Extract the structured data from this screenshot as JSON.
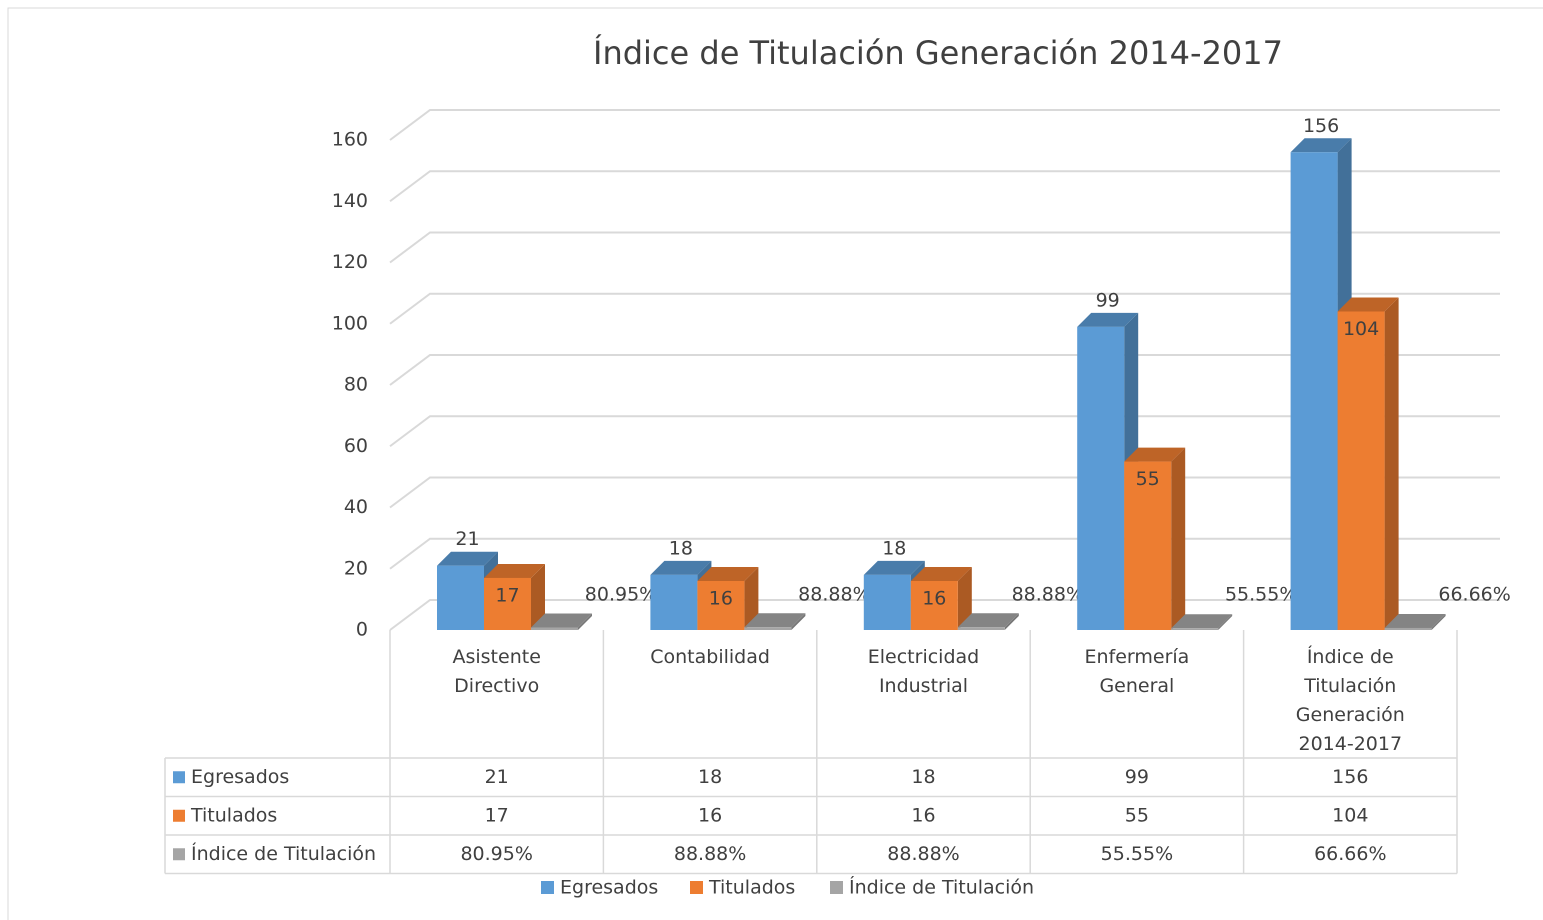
{
  "chart_data": {
    "type": "bar3d",
    "title": "Índice de Titulación Generación 2014-2017",
    "categories": [
      "Asistente Directivo",
      "Contabilidad",
      "Electricidad Industrial",
      "Enfermería General",
      "Índice de Titulación Generación 2014-2017"
    ],
    "series": [
      {
        "name": "Egresados",
        "color": "#5b9bd5",
        "values": [
          21,
          18,
          18,
          99,
          156
        ]
      },
      {
        "name": "Titulados",
        "color": "#ed7d31",
        "values": [
          17,
          16,
          16,
          55,
          104
        ]
      },
      {
        "name": "Índice de Titulación",
        "color": "#a5a5a5",
        "values": [
          0.8095,
          0.8888,
          0.8888,
          0.5555,
          0.6666
        ],
        "value_labels": [
          "80.95%",
          "88.88%",
          "88.88%",
          "55.55%",
          "66.66%"
        ]
      }
    ],
    "ylim": [
      0,
      160
    ],
    "yticks": [
      0,
      20,
      40,
      60,
      80,
      100,
      120,
      140,
      160
    ],
    "grid": true,
    "data_table": true,
    "legend": "bottom"
  }
}
